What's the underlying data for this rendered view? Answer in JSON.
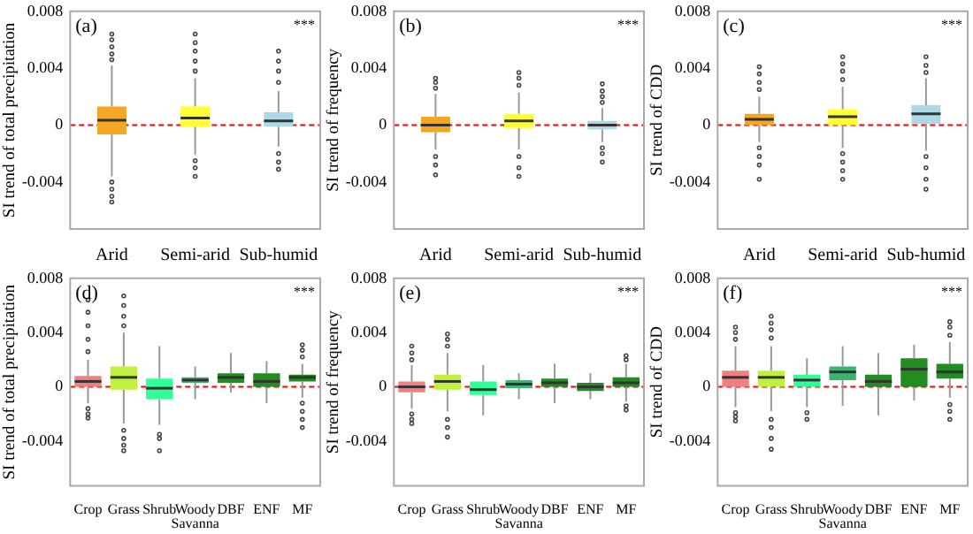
{
  "chart_data": [
    {
      "type": "box",
      "title": "(a)",
      "ylabel": "SI trend of total precipitation",
      "categories": [
        "Arid",
        "Semi-arid",
        "Sub-humid"
      ],
      "colors": [
        "#f5a623",
        "#ffff33",
        "#add8e6"
      ],
      "ylim": [
        -0.0073,
        0.008
      ],
      "yticks": [
        -0.004,
        0,
        0.004,
        0.008
      ],
      "ref_lines": [
        {
          "axis": "y",
          "value": 0,
          "color": "#ff0000",
          "line_style": "dashed"
        }
      ],
      "annotations": [
        "***"
      ],
      "boxes": [
        {
          "low": -0.0036,
          "q1": -0.00065,
          "median": 0.00035,
          "q3": 0.0013,
          "high": 0.0042,
          "outliers": [
            0.0046,
            0.005,
            0.0055,
            0.006,
            0.0064,
            -0.004,
            -0.0045,
            -0.005,
            -0.0054
          ]
        },
        {
          "low": -0.0021,
          "q1": -0.0001,
          "median": 0.0005,
          "q3": 0.0013,
          "high": 0.0033,
          "outliers": [
            0.0038,
            0.0045,
            0.0052,
            0.0058,
            0.0064,
            -0.0025,
            -0.003,
            -0.0036
          ]
        },
        {
          "low": -0.0015,
          "q1": -0.0001,
          "median": 0.0003,
          "q3": 0.0009,
          "high": 0.0024,
          "outliers": [
            0.003,
            0.0038,
            0.0045,
            0.0052,
            -0.002,
            -0.0026,
            -0.0031
          ]
        }
      ]
    },
    {
      "type": "box",
      "title": "(b)",
      "ylabel": "SI trend of frequency",
      "categories": [
        "Arid",
        "Semi-arid",
        "Sub-humid"
      ],
      "colors": [
        "#f5a623",
        "#ffff33",
        "#add8e6"
      ],
      "ylim": [
        -0.0073,
        0.008
      ],
      "yticks": [
        -0.004,
        0,
        0.004,
        0.008
      ],
      "ref_lines": [
        {
          "axis": "y",
          "value": 0,
          "color": "#ff0000",
          "line_style": "dashed"
        }
      ],
      "annotations": [
        "***"
      ],
      "boxes": [
        {
          "low": -0.0017,
          "q1": -0.0005,
          "median": 0,
          "q3": 0.0006,
          "high": 0.0022,
          "outliers": [
            0.0026,
            0.003,
            0.0033,
            -0.0022,
            -0.0028,
            -0.0035
          ]
        },
        {
          "low": -0.0017,
          "q1": -0.0002,
          "median": 0.0003,
          "q3": 0.0008,
          "high": 0.0023,
          "outliers": [
            0.0028,
            0.0033,
            0.0037,
            -0.0022,
            -0.003,
            -0.0036
          ]
        },
        {
          "low": -0.0012,
          "q1": -0.0003,
          "median": 0,
          "q3": 0.0003,
          "high": 0.0012,
          "outliers": [
            0.0016,
            0.002,
            0.0024,
            0.0029,
            -0.0016,
            -0.002,
            -0.0026
          ]
        }
      ]
    },
    {
      "type": "box",
      "title": "(c)",
      "ylabel": "SI trend of CDD",
      "categories": [
        "Arid",
        "Semi-arid",
        "Sub-humid"
      ],
      "colors": [
        "#f5a623",
        "#ffff33",
        "#add8e6"
      ],
      "ylim": [
        -0.0073,
        0.008
      ],
      "yticks": [
        -0.004,
        0,
        0.004,
        0.008
      ],
      "ref_lines": [
        {
          "axis": "y",
          "value": 0,
          "color": "#ff0000",
          "line_style": "dashed"
        }
      ],
      "annotations": [
        "***"
      ],
      "boxes": [
        {
          "low": -0.0012,
          "q1": 0,
          "median": 0.0004,
          "q3": 0.0008,
          "high": 0.002,
          "outliers": [
            0.0025,
            0.003,
            0.0036,
            0.0041,
            -0.0016,
            -0.0022,
            -0.0028,
            -0.0038
          ]
        },
        {
          "low": -0.0016,
          "q1": 0,
          "median": 0.0006,
          "q3": 0.0011,
          "high": 0.0027,
          "outliers": [
            0.0032,
            0.0038,
            0.0043,
            0.0048,
            -0.002,
            -0.0026,
            -0.0032,
            -0.0038
          ]
        },
        {
          "low": -0.0018,
          "q1": 0.0001,
          "median": 0.0008,
          "q3": 0.0014,
          "high": 0.0033,
          "outliers": [
            0.0037,
            0.0042,
            0.0048,
            -0.0022,
            -0.003,
            -0.0038,
            -0.0045
          ]
        }
      ]
    },
    {
      "type": "box",
      "title": "(d)",
      "ylabel": "SI trend of total precipitation",
      "categories": [
        "Crop",
        "Grass",
        "Shrub",
        "Woody Savanna",
        "DBF",
        "ENF",
        "MF"
      ],
      "colors": [
        "#f08080",
        "#c0f040",
        "#33ff99",
        "#3cb371",
        "#228b22",
        "#228b22",
        "#228b22"
      ],
      "ylim": [
        -0.0073,
        0.008
      ],
      "yticks": [
        -0.004,
        0,
        0.004,
        0.008
      ],
      "ref_lines": [
        {
          "axis": "y",
          "value": 0,
          "color": "#ff0000",
          "line_style": "dashed"
        }
      ],
      "annotations": [
        "***"
      ],
      "boxes": [
        {
          "low": -0.0012,
          "q1": 0,
          "median": 0.0004,
          "q3": 0.0008,
          "high": 0.002,
          "outliers": [
            0.0026,
            0.0035,
            0.0045,
            0.0055,
            0.0064,
            -0.0016,
            -0.002,
            -0.0023
          ]
        },
        {
          "low": -0.0027,
          "q1": -0.0002,
          "median": 0.0007,
          "q3": 0.0015,
          "high": 0.004,
          "outliers": [
            0.0045,
            0.0052,
            0.006,
            0.0067,
            -0.0032,
            -0.0038,
            -0.0043,
            -0.0047
          ]
        },
        {
          "low": -0.0028,
          "q1": -0.0009,
          "median": -0.0001,
          "q3": 0.0006,
          "high": 0.003,
          "outliers": [
            -0.0035,
            -0.0038,
            -0.0047
          ]
        },
        {
          "low": -0.0009,
          "q1": 0.0003,
          "median": 0.0005,
          "q3": 0.0007,
          "high": 0.0015
        },
        {
          "low": -0.0004,
          "q1": 0.0003,
          "median": 0.0007,
          "q3": 0.001,
          "high": 0.0025
        },
        {
          "low": -0.0012,
          "q1": 0,
          "median": 0.0004,
          "q3": 0.001,
          "high": 0.0019
        },
        {
          "low": -0.0008,
          "q1": 0.0004,
          "median": 0.0007,
          "q3": 0.0009,
          "high": 0.0017,
          "outliers": [
            0.0022,
            0.0027,
            0.0031,
            -0.0012,
            -0.0018,
            -0.0024,
            -0.003
          ]
        }
      ]
    },
    {
      "type": "box",
      "title": "(e)",
      "ylabel": "SI trend of frequency",
      "categories": [
        "Crop",
        "Grass",
        "Shrub",
        "Woody Savanna",
        "DBF",
        "ENF",
        "MF"
      ],
      "colors": [
        "#f08080",
        "#c0f040",
        "#33ff99",
        "#3cb371",
        "#228b22",
        "#228b22",
        "#228b22"
      ],
      "ylim": [
        -0.0073,
        0.008
      ],
      "yticks": [
        -0.004,
        0,
        0.004,
        0.008
      ],
      "ref_lines": [
        {
          "axis": "y",
          "value": 0,
          "color": "#ff0000",
          "line_style": "dashed"
        }
      ],
      "annotations": [
        "***"
      ],
      "boxes": [
        {
          "low": -0.0016,
          "q1": -0.0004,
          "median": 0,
          "q3": 0.0004,
          "high": 0.0016,
          "outliers": [
            0.002,
            0.0025,
            0.003,
            -0.002,
            -0.0024,
            -0.0027
          ]
        },
        {
          "low": -0.0018,
          "q1": -0.0002,
          "median": 0.0004,
          "q3": 0.0009,
          "high": 0.0025,
          "outliers": [
            0.003,
            0.0035,
            0.0039,
            -0.0024,
            -0.003,
            -0.0037
          ]
        },
        {
          "low": -0.0021,
          "q1": -0.0006,
          "median": -0.0002,
          "q3": 0.0004,
          "high": 0.0016
        },
        {
          "low": -0.0009,
          "q1": -0.0001,
          "median": 0.0002,
          "q3": 0.0005,
          "high": 0.001
        },
        {
          "low": -0.0012,
          "q1": 0,
          "median": 0.0003,
          "q3": 0.0006,
          "high": 0.0017
        },
        {
          "low": -0.0009,
          "q1": -0.0003,
          "median": 0,
          "q3": 0.0003,
          "high": 0.001
        },
        {
          "low": -0.0011,
          "q1": 0,
          "median": 0.0003,
          "q3": 0.0007,
          "high": 0.0017,
          "outliers": [
            0.002,
            0.0023,
            -0.0014,
            -0.0017
          ]
        }
      ]
    },
    {
      "type": "box",
      "title": "(f)",
      "ylabel": "SI trend of CDD",
      "categories": [
        "Crop",
        "Grass",
        "Shrub",
        "Woody Savanna",
        "DBF",
        "ENF",
        "MF"
      ],
      "colors": [
        "#f08080",
        "#c0f040",
        "#33ff99",
        "#3cb371",
        "#228b22",
        "#228b22",
        "#228b22"
      ],
      "ylim": [
        -0.0073,
        0.008
      ],
      "yticks": [
        -0.004,
        0,
        0.004,
        0.008
      ],
      "ref_lines": [
        {
          "axis": "y",
          "value": 0,
          "color": "#ff0000",
          "line_style": "dashed"
        }
      ],
      "annotations": [
        "***"
      ],
      "boxes": [
        {
          "low": -0.0015,
          "q1": 0,
          "median": 0.0007,
          "q3": 0.0012,
          "high": 0.003,
          "outliers": [
            0.0035,
            0.004,
            0.0044,
            -0.0019,
            -0.0022,
            -0.0025
          ]
        },
        {
          "low": -0.0018,
          "q1": 0,
          "median": 0.0007,
          "q3": 0.0012,
          "high": 0.003,
          "outliers": [
            0.0036,
            0.0042,
            0.0047,
            0.0052,
            -0.0024,
            -0.003,
            -0.0038,
            -0.0046
          ]
        },
        {
          "low": -0.0015,
          "q1": 0,
          "median": 0.0005,
          "q3": 0.0009,
          "high": 0.0021,
          "outliers": [
            -0.0019,
            -0.0024
          ]
        },
        {
          "low": -0.0014,
          "q1": 0.0005,
          "median": 0.0011,
          "q3": 0.0015,
          "high": 0.003
        },
        {
          "low": -0.0021,
          "q1": 0,
          "median": 0.0004,
          "q3": 0.0009,
          "high": 0.0025
        },
        {
          "low": -0.001,
          "q1": 0,
          "median": 0.0013,
          "q3": 0.0021,
          "high": 0.0031
        },
        {
          "low": -0.0008,
          "q1": 0.0006,
          "median": 0.0011,
          "q3": 0.0017,
          "high": 0.0033,
          "outliers": [
            0.0038,
            0.0044,
            0.0048,
            -0.0013,
            -0.0018,
            -0.0024
          ]
        }
      ]
    }
  ]
}
